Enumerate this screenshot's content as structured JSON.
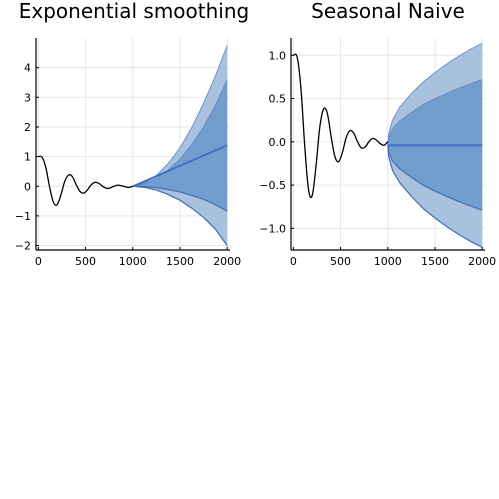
{
  "chart_data": [
    {
      "type": "line",
      "title": "Exponential smoothing",
      "xlim": [
        -25,
        2030
      ],
      "ylim": [
        -2.15,
        5.0
      ],
      "xticks": [
        0,
        500,
        1000,
        1500,
        2000
      ],
      "xtick_labels": [
        "0",
        "500",
        "1000",
        "1500",
        "2000"
      ],
      "yticks": [
        -2,
        -1,
        0,
        1,
        2,
        3,
        4
      ],
      "ytick_labels": [
        "−2",
        "−1",
        "0",
        "1",
        "2",
        "3",
        "4"
      ],
      "grid": true,
      "legend": "none",
      "series": [
        {
          "role": "history",
          "color": "#000000",
          "x": [
            0,
            40,
            80,
            120,
            160,
            200,
            240,
            280,
            320,
            360,
            400,
            440,
            480,
            520,
            560,
            600,
            640,
            680,
            720,
            760,
            800,
            840,
            880,
            920,
            960,
            1000
          ],
          "y": [
            1.0,
            0.98,
            0.62,
            -0.04,
            -0.55,
            -0.62,
            -0.28,
            0.17,
            0.38,
            0.33,
            0.06,
            -0.17,
            -0.23,
            -0.12,
            0.05,
            0.13,
            0.1,
            0.0,
            -0.07,
            -0.06,
            0.0,
            0.04,
            0.02,
            -0.02,
            -0.04,
            0.0
          ]
        },
        {
          "role": "forecast",
          "color": "#4169c8",
          "x": [
            1000,
            2000
          ],
          "y": [
            0.0,
            1.38
          ]
        }
      ],
      "bands": [
        {
          "level": "outer",
          "color": "#a3bedc",
          "x": [
            1000,
            1125,
            1250,
            1375,
            1500,
            1625,
            1750,
            1875,
            2000
          ],
          "lower": [
            0.0,
            -0.04,
            -0.13,
            -0.28,
            -0.47,
            -0.74,
            -1.05,
            -1.45,
            -2.0
          ],
          "upper": [
            0.0,
            0.12,
            0.37,
            0.77,
            1.3,
            1.98,
            2.8,
            3.72,
            4.75
          ]
        },
        {
          "level": "inner",
          "color": "#6f9ccb",
          "x": [
            1000,
            1125,
            1250,
            1375,
            1500,
            1625,
            1750,
            1875,
            2000
          ],
          "lower": [
            0.0,
            -0.01,
            -0.05,
            -0.11,
            -0.19,
            -0.31,
            -0.44,
            -0.62,
            -0.84
          ],
          "upper": [
            0.0,
            0.09,
            0.27,
            0.55,
            0.92,
            1.41,
            2.0,
            2.73,
            3.6
          ]
        }
      ]
    },
    {
      "type": "line",
      "title": "Seasonal Naive",
      "xlim": [
        -25,
        2030
      ],
      "ylim": [
        -1.25,
        1.2
      ],
      "xticks": [
        0,
        500,
        1000,
        1500,
        2000
      ],
      "xtick_labels": [
        "0",
        "500",
        "1000",
        "1500",
        "2000"
      ],
      "yticks": [
        -1.0,
        -0.5,
        0.0,
        0.5,
        1.0
      ],
      "ytick_labels": [
        "−1.0",
        "−0.5",
        "0.0",
        "0.5",
        "1.0"
      ],
      "grid": true,
      "legend": "none",
      "series": [
        {
          "role": "history",
          "color": "#000000",
          "x": [
            0,
            40,
            80,
            120,
            160,
            200,
            240,
            280,
            320,
            360,
            400,
            440,
            480,
            520,
            560,
            600,
            640,
            680,
            720,
            760,
            800,
            840,
            880,
            920,
            960,
            1000
          ],
          "y": [
            1.0,
            0.98,
            0.62,
            -0.04,
            -0.55,
            -0.62,
            -0.28,
            0.17,
            0.38,
            0.33,
            0.06,
            -0.17,
            -0.23,
            -0.12,
            0.05,
            0.13,
            0.1,
            0.0,
            -0.07,
            -0.06,
            0.0,
            0.04,
            0.02,
            -0.02,
            -0.04,
            0.0
          ]
        },
        {
          "role": "forecast",
          "color": "#4169c8",
          "x": [
            1000,
            2000
          ],
          "y": [
            -0.04,
            -0.04
          ]
        }
      ],
      "bands": [
        {
          "level": "outer",
          "color": "#a3bedc",
          "x": [
            1000,
            1010,
            1050,
            1125,
            1250,
            1375,
            1500,
            1625,
            1750,
            1875,
            2000
          ],
          "lower": [
            -0.04,
            -0.17,
            -0.33,
            -0.47,
            -0.63,
            -0.77,
            -0.88,
            -0.98,
            -1.07,
            -1.15,
            -1.22
          ],
          "upper": [
            -0.04,
            0.09,
            0.25,
            0.4,
            0.56,
            0.69,
            0.8,
            0.9,
            0.99,
            1.07,
            1.14
          ]
        },
        {
          "level": "inner",
          "color": "#6f9ccb",
          "x": [
            1000,
            1010,
            1050,
            1125,
            1250,
            1375,
            1500,
            1625,
            1750,
            1875,
            2000
          ],
          "lower": [
            -0.04,
            -0.12,
            -0.22,
            -0.31,
            -0.41,
            -0.5,
            -0.57,
            -0.63,
            -0.69,
            -0.74,
            -0.79
          ],
          "upper": [
            -0.04,
            0.05,
            0.15,
            0.24,
            0.34,
            0.43,
            0.5,
            0.56,
            0.62,
            0.67,
            0.72
          ]
        }
      ]
    }
  ]
}
